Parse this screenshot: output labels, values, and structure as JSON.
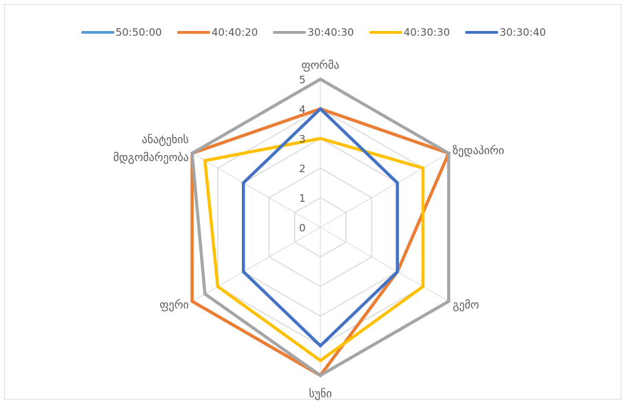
{
  "chart_data": {
    "type": "radar",
    "title": "",
    "axes": [
      [
        "ფორმა"
      ],
      [
        "ზედაპირი"
      ],
      [
        "გემო"
      ],
      [
        "სუნი"
      ],
      [
        "ფერი"
      ],
      [
        "ანატეხის",
        "მდგომარეობა"
      ]
    ],
    "rlim": [
      0,
      5
    ],
    "ticks": [
      "0",
      "1",
      "2",
      "3",
      "4",
      "5"
    ],
    "grid": true,
    "legend_position": "top",
    "series": [
      {
        "name": "50:50:00",
        "color": "#5b9bd5",
        "values": [
          4,
          5,
          3,
          5,
          5,
          5
        ]
      },
      {
        "name": "40:40:20",
        "color": "#ed7d31",
        "values": [
          4,
          5,
          3,
          5,
          5,
          5
        ]
      },
      {
        "name": "30:40:30",
        "color": "#a5a5a5",
        "values": [
          5,
          5,
          5,
          5,
          4.5,
          5
        ]
      },
      {
        "name": "40:30:30",
        "color": "#ffc000",
        "values": [
          3,
          4,
          4,
          4.5,
          4,
          4.5
        ]
      },
      {
        "name": "30:30:40",
        "color": "#4472c4",
        "values": [
          4,
          3,
          3,
          4,
          3,
          3
        ]
      }
    ]
  }
}
